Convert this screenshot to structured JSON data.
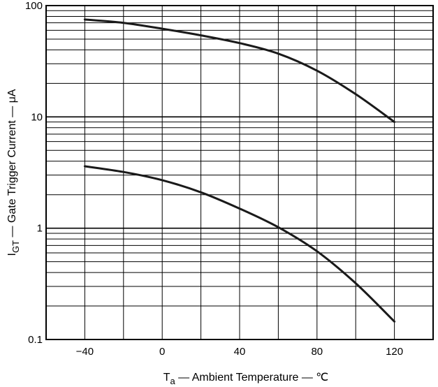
{
  "chart_data": {
    "type": "line",
    "title": "",
    "xlabel": {
      "main": "T",
      "sub": "a",
      "rest": " — Ambient Temperature — ℃"
    },
    "ylabel": {
      "main": "I",
      "sub": "GT",
      "rest": " — Gate Trigger Current — μA"
    },
    "x_scale": "linear",
    "y_scale": "log",
    "xlim": [
      -60,
      140
    ],
    "ylim": [
      0.1,
      100
    ],
    "x_ticks": [
      -40,
      0,
      40,
      80,
      120
    ],
    "x_tick_labels": [
      "−40",
      "0",
      "40",
      "80",
      "120"
    ],
    "y_ticks": [
      0.1,
      1,
      10,
      100
    ],
    "y_tick_labels": [
      "0.1",
      "1",
      "10",
      "100"
    ],
    "grid": true,
    "series": [
      {
        "x": [
          -40,
          -20,
          0,
          20,
          40,
          60,
          80,
          100,
          120
        ],
        "y": [
          75,
          70,
          62,
          54,
          46,
          37,
          26,
          16,
          9
        ]
      },
      {
        "x": [
          -40,
          -20,
          0,
          20,
          40,
          60,
          80,
          100,
          120
        ],
        "y": [
          3.6,
          3.2,
          2.7,
          2.1,
          1.5,
          1.02,
          0.62,
          0.32,
          0.145
        ]
      }
    ],
    "line_color": "#1a1a1a",
    "grid_color": "#000000"
  }
}
